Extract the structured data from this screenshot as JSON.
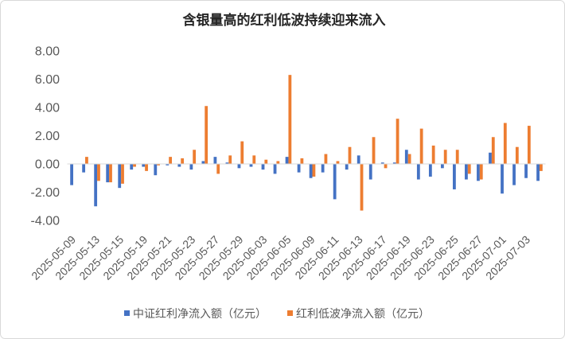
{
  "chart_data": {
    "type": "bar",
    "title": "含银量高的红利低波持续迎来流入",
    "categories": [
      "2025-05-09",
      "",
      "2025-05-13",
      "",
      "2025-05-15",
      "",
      "2025-05-19",
      "",
      "2025-05-21",
      "",
      "2025-05-23",
      "",
      "2025-05-27",
      "",
      "2025-05-29",
      "",
      "2025-06-03",
      "",
      "2025-06-05",
      "",
      "2025-06-09",
      "",
      "2025-06-11",
      "",
      "2025-06-13",
      "",
      "2025-06-17",
      "",
      "2025-06-19",
      "",
      "2025-06-23",
      "",
      "2025-06-25",
      "",
      "2025-06-27",
      "",
      "2025-07-01",
      "",
      "2025-07-03",
      ""
    ],
    "series": [
      {
        "name": "中证红利净流入额（亿元）",
        "color": "#4472C4",
        "values": [
          -1.5,
          -0.6,
          -3.0,
          -1.3,
          -1.7,
          -0.4,
          -0.2,
          -0.8,
          -0.1,
          -0.2,
          -0.4,
          0.2,
          0.5,
          0.1,
          -0.3,
          -0.2,
          -0.4,
          -0.7,
          0.5,
          -0.6,
          -1.0,
          -0.6,
          -2.5,
          -0.4,
          0.6,
          -1.1,
          0.1,
          0.1,
          1.0,
          -1.1,
          -0.9,
          -0.3,
          -1.8,
          -1.1,
          -1.2,
          0.8,
          -2.1,
          -1.5,
          -1.0,
          -1.2
        ]
      },
      {
        "name": "红利低波净流入额（亿元）",
        "color": "#ED7D31",
        "values": [
          0.0,
          0.5,
          -1.2,
          -1.3,
          -1.4,
          -0.2,
          -0.5,
          -0.1,
          0.5,
          0.4,
          1.0,
          4.1,
          -0.7,
          0.6,
          1.6,
          0.6,
          0.3,
          0.2,
          6.3,
          0.4,
          -0.9,
          0.7,
          0.2,
          1.2,
          -3.3,
          1.9,
          -0.3,
          3.2,
          0.7,
          2.5,
          1.3,
          1.0,
          1.0,
          -0.7,
          -1.1,
          1.9,
          2.9,
          1.2,
          2.7,
          -0.5
        ]
      }
    ],
    "yticks": [
      8,
      6,
      4,
      2,
      0,
      -2,
      -4
    ],
    "ytick_labels": [
      "8.00",
      "6.00",
      "4.00",
      "2.00",
      "0.00",
      "-2.00",
      "-4.00"
    ],
    "ylim": [
      -4,
      8
    ],
    "grid": false,
    "legend": "bottom"
  }
}
